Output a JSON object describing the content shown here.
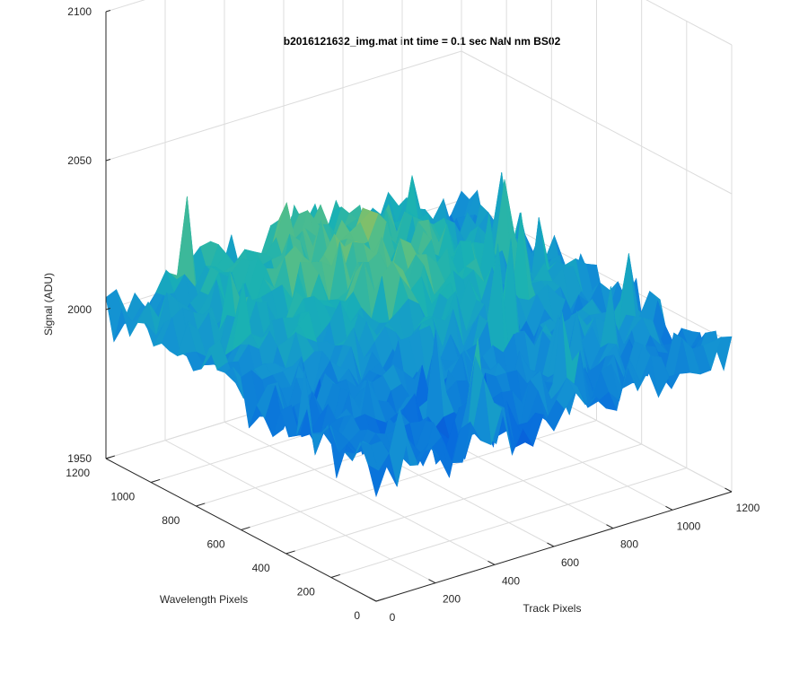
{
  "chart_data": {
    "type": "surface",
    "title": "b2016121632_img.mat int time = 0.1 sec  NaN nm BS02",
    "xlabel": "Track Pixels",
    "ylabel": "Wavelength Pixels",
    "zlabel": "Signal (ADU)",
    "xlim": [
      0,
      1200
    ],
    "ylim": [
      0,
      1200
    ],
    "zlim": [
      1950,
      2100
    ],
    "x_ticks": [
      "0",
      "200",
      "400",
      "600",
      "800",
      "1000",
      "1200"
    ],
    "y_ticks": [
      "0",
      "200",
      "400",
      "600",
      "800",
      "1000",
      "1200"
    ],
    "z_ticks": [
      "1950",
      "2000",
      "2050",
      "2100"
    ],
    "z_typical_range": [
      1985,
      2030
    ],
    "colormap": "parula",
    "grid": true
  }
}
